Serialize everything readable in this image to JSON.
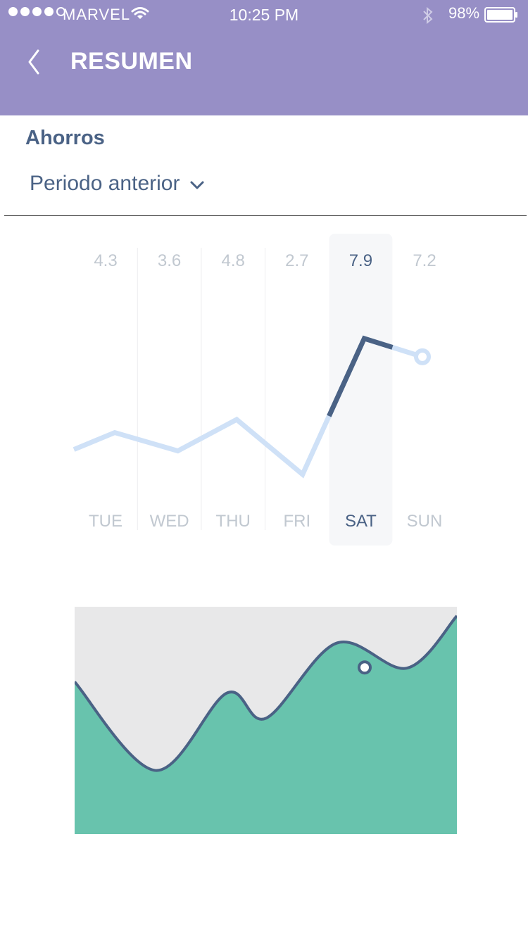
{
  "status_bar": {
    "carrier": "MARVEL",
    "time": "10:25 PM",
    "battery": "98%",
    "signal_bars_filled": 4,
    "signal_bars_total": 5
  },
  "header": {
    "title": "RESUMEN",
    "back_icon": "chevron-left-icon",
    "background": "#978fc6"
  },
  "section": {
    "label": "Ahorros",
    "period_selector": "Periodo anterior"
  },
  "chart_data": [
    {
      "type": "line",
      "categories": [
        "TUE",
        "WED",
        "THU",
        "FRI",
        "SAT",
        "SUN"
      ],
      "values": [
        4.3,
        3.6,
        4.8,
        2.7,
        7.9,
        7.2
      ],
      "value_labels": [
        "4.3",
        "3.6",
        "4.8",
        "2.7",
        "7.9",
        "7.2"
      ],
      "selected_category": "SAT",
      "colors": {
        "line": "#cfe1f7",
        "highlight": "#4a6285",
        "label": "#c1c8d0",
        "selected_label": "#4a6285",
        "selection_bg": "#f6f7f9"
      }
    },
    {
      "type": "area",
      "values": [
        6.7,
        2.8,
        6.2,
        5.1,
        8.4,
        7.3,
        9.6
      ],
      "ylim": [
        0,
        10
      ],
      "highlighted_point_index": 5,
      "colors": {
        "fill": "#68c3ad",
        "line": "#4a6285",
        "background": "#e8e8e9"
      }
    }
  ]
}
